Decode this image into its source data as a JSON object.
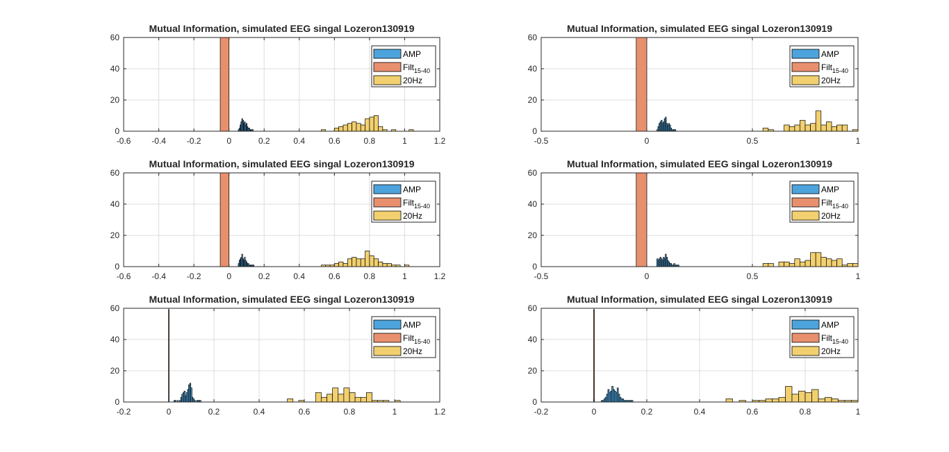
{
  "colors": {
    "amp": "#4DA3DC",
    "filt": "#E8906E",
    "hz20": "#F2D06F",
    "grid": "#dcdcdc",
    "axis": "#262626",
    "bar_edge": "#000000"
  },
  "chart_data": [
    {
      "type": "histogram",
      "title": "Mutual Information, simulated EEG singal Lozeron130919",
      "xlim": [
        -0.6,
        1.2
      ],
      "ylim": [
        0,
        60
      ],
      "xticks": [
        -0.6,
        -0.4,
        -0.2,
        0,
        0.2,
        0.4,
        0.6,
        0.8,
        1,
        1.2
      ],
      "xtick_labels": [
        "-0.6",
        "-0.4",
        "-0.2",
        "0",
        "0.2",
        "0.4",
        "0.6",
        "0.8",
        "1",
        "1.2"
      ],
      "yticks": [
        0,
        20,
        40,
        60
      ],
      "ytick_labels": [
        "0",
        "20",
        "40",
        "60"
      ],
      "grid": true,
      "legend": {
        "position": "top-right",
        "entries": [
          {
            "key": "amp",
            "label": "AMP"
          },
          {
            "key": "filt",
            "label": "Filt",
            "sub": "15-40"
          },
          {
            "key": "hz20",
            "label": "20Hz"
          }
        ]
      },
      "series": [
        {
          "key": "amp",
          "name": "AMP",
          "bin_width": 0.005,
          "x": [
            0.055,
            0.06,
            0.065,
            0.07,
            0.075,
            0.08,
            0.085,
            0.09,
            0.095,
            0.1,
            0.105,
            0.11,
            0.115,
            0.12,
            0.125,
            0.13,
            0.135
          ],
          "values": [
            1,
            2,
            4,
            6,
            8,
            7,
            5,
            6,
            4,
            5,
            3,
            2,
            2,
            1,
            1,
            1,
            1
          ]
        },
        {
          "key": "filt",
          "name": "Filt15-40",
          "bin_width": 0.05,
          "x": [
            -0.025
          ],
          "values": [
            60
          ]
        },
        {
          "key": "hz20",
          "name": "20Hz",
          "bin_width": 0.025,
          "x": [
            0.5375,
            0.6125,
            0.6375,
            0.6625,
            0.6875,
            0.7125,
            0.7375,
            0.7625,
            0.7875,
            0.8125,
            0.8375,
            0.8625,
            0.8875,
            0.9375,
            1.0375
          ],
          "values": [
            1,
            2,
            3,
            4,
            5,
            6,
            5,
            4,
            8,
            9,
            10,
            3,
            1,
            1,
            1
          ]
        }
      ]
    },
    {
      "type": "histogram",
      "title": "Mutual Information, simulated EEG singal Lozeron130919",
      "xlim": [
        -0.5,
        1
      ],
      "ylim": [
        0,
        60
      ],
      "xticks": [
        -0.5,
        0,
        0.5,
        1
      ],
      "xtick_labels": [
        "-0.5",
        "0",
        "0.5",
        "1"
      ],
      "yticks": [
        0,
        20,
        40,
        60
      ],
      "ytick_labels": [
        "0",
        "20",
        "40",
        "60"
      ],
      "grid": true,
      "legend": {
        "position": "top-right",
        "entries": [
          {
            "key": "amp",
            "label": "AMP"
          },
          {
            "key": "filt",
            "label": "Filt",
            "sub": "15-40"
          },
          {
            "key": "hz20",
            "label": "20Hz"
          }
        ]
      },
      "series": [
        {
          "key": "amp",
          "name": "AMP",
          "bin_width": 0.005,
          "x": [
            0.05,
            0.055,
            0.06,
            0.065,
            0.07,
            0.075,
            0.08,
            0.085,
            0.09,
            0.095,
            0.1,
            0.105,
            0.11,
            0.115,
            0.12,
            0.125,
            0.13,
            0.135
          ],
          "values": [
            1,
            3,
            5,
            6,
            7,
            5,
            6,
            8,
            9,
            5,
            4,
            5,
            4,
            2,
            1,
            1,
            1,
            1
          ]
        },
        {
          "key": "filt",
          "name": "Filt15-40",
          "bin_width": 0.05,
          "x": [
            -0.025
          ],
          "values": [
            60
          ]
        },
        {
          "key": "hz20",
          "name": "20Hz",
          "bin_width": 0.025,
          "x": [
            0.5625,
            0.5875,
            0.6625,
            0.6875,
            0.7125,
            0.7375,
            0.7625,
            0.7875,
            0.8125,
            0.8375,
            0.8625,
            0.8875,
            0.9125,
            0.9375,
            0.9875
          ],
          "values": [
            2,
            1,
            4,
            3,
            4,
            7,
            4,
            5,
            13,
            4,
            6,
            3,
            4,
            4,
            1
          ]
        }
      ]
    },
    {
      "type": "histogram",
      "title": "Mutual Information, simulated EEG singal Lozeron130919",
      "xlim": [
        -0.6,
        1.2
      ],
      "ylim": [
        0,
        60
      ],
      "xticks": [
        -0.6,
        -0.4,
        -0.2,
        0,
        0.2,
        0.4,
        0.6,
        0.8,
        1,
        1.2
      ],
      "xtick_labels": [
        "-0.6",
        "-0.4",
        "-0.2",
        "0",
        "0.2",
        "0.4",
        "0.6",
        "0.8",
        "1",
        "1.2"
      ],
      "yticks": [
        0,
        20,
        40,
        60
      ],
      "ytick_labels": [
        "0",
        "20",
        "40",
        "60"
      ],
      "grid": true,
      "legend": {
        "position": "top-right",
        "entries": [
          {
            "key": "amp",
            "label": "AMP"
          },
          {
            "key": "filt",
            "label": "Filt",
            "sub": "15-40"
          },
          {
            "key": "hz20",
            "label": "20Hz"
          }
        ]
      },
      "series": [
        {
          "key": "amp",
          "name": "AMP",
          "bin_width": 0.005,
          "x": [
            0.055,
            0.06,
            0.065,
            0.07,
            0.075,
            0.08,
            0.085,
            0.09,
            0.095,
            0.1,
            0.105,
            0.11,
            0.115,
            0.12,
            0.125,
            0.13,
            0.135,
            0.14
          ],
          "values": [
            2,
            4,
            5,
            6,
            8,
            5,
            4,
            6,
            4,
            3,
            2,
            2,
            1,
            1,
            1,
            1,
            1,
            1
          ]
        },
        {
          "key": "filt",
          "name": "Filt15-40",
          "bin_width": 0.05,
          "x": [
            -0.025
          ],
          "values": [
            60
          ]
        },
        {
          "key": "hz20",
          "name": "20Hz",
          "bin_width": 0.025,
          "x": [
            0.5375,
            0.5625,
            0.5875,
            0.6125,
            0.6375,
            0.6625,
            0.6875,
            0.7125,
            0.7375,
            0.7625,
            0.7875,
            0.8125,
            0.8375,
            0.8625,
            0.8875,
            0.9125,
            0.9375,
            0.9625,
            1.0125
          ],
          "values": [
            1,
            1,
            1,
            2,
            3,
            2,
            5,
            6,
            5,
            5,
            10,
            7,
            5,
            3,
            2,
            2,
            1,
            1,
            1
          ]
        }
      ]
    },
    {
      "type": "histogram",
      "title": "Mutual Information, simulated EEG singal Lozeron130919",
      "xlim": [
        -0.5,
        1
      ],
      "ylim": [
        0,
        60
      ],
      "xticks": [
        -0.5,
        0,
        0.5,
        1
      ],
      "xtick_labels": [
        "-0.5",
        "0",
        "0.5",
        "1"
      ],
      "yticks": [
        0,
        20,
        40,
        60
      ],
      "ytick_labels": [
        "0",
        "20",
        "40",
        "60"
      ],
      "grid": true,
      "legend": {
        "position": "top-right",
        "entries": [
          {
            "key": "amp",
            "label": "AMP"
          },
          {
            "key": "filt",
            "label": "Filt",
            "sub": "15-40"
          },
          {
            "key": "hz20",
            "label": "20Hz"
          }
        ]
      },
      "series": [
        {
          "key": "amp",
          "name": "AMP",
          "bin_width": 0.005,
          "x": [
            0.05,
            0.055,
            0.06,
            0.065,
            0.07,
            0.075,
            0.08,
            0.085,
            0.09,
            0.095,
            0.1,
            0.105,
            0.11,
            0.115,
            0.12,
            0.125,
            0.13,
            0.135,
            0.14,
            0.145,
            0.15
          ],
          "values": [
            5,
            4,
            5,
            6,
            5,
            4,
            6,
            5,
            8,
            6,
            4,
            3,
            2,
            2,
            1,
            1,
            2,
            1,
            1,
            1,
            1
          ]
        },
        {
          "key": "filt",
          "name": "Filt15-40",
          "bin_width": 0.05,
          "x": [
            -0.025
          ],
          "values": [
            60
          ]
        },
        {
          "key": "hz20",
          "name": "20Hz",
          "bin_width": 0.025,
          "x": [
            0.5625,
            0.5875,
            0.6375,
            0.6625,
            0.6875,
            0.7125,
            0.7375,
            0.7625,
            0.7875,
            0.8125,
            0.8375,
            0.8625,
            0.8875,
            0.9125,
            0.9375,
            0.9625,
            0.9875
          ],
          "values": [
            2,
            2,
            3,
            3,
            2,
            5,
            3,
            4,
            9,
            9,
            6,
            5,
            4,
            5,
            1,
            2,
            2
          ]
        }
      ]
    },
    {
      "type": "histogram",
      "title": "Mutual Information, simulated EEG singal Lozeron130919",
      "xlim": [
        -0.2,
        1.2
      ],
      "ylim": [
        0,
        60
      ],
      "xticks": [
        -0.2,
        0,
        0.2,
        0.4,
        0.6,
        0.8,
        1,
        1.2
      ],
      "xtick_labels": [
        "-0.2",
        "0",
        "0.2",
        "0.4",
        "0.6",
        "0.8",
        "1",
        "1.2"
      ],
      "yticks": [
        0,
        20,
        40,
        60
      ],
      "ytick_labels": [
        "0",
        "20",
        "40",
        "60"
      ],
      "grid": true,
      "legend": {
        "position": "top-right",
        "entries": [
          {
            "key": "amp",
            "label": "AMP"
          },
          {
            "key": "filt",
            "label": "Filt",
            "sub": "15-40"
          },
          {
            "key": "hz20",
            "label": "20Hz"
          }
        ]
      },
      "series": [
        {
          "key": "amp",
          "name": "AMP",
          "bin_width": 0.005,
          "x": [
            0.025,
            0.03,
            0.04,
            0.05,
            0.055,
            0.06,
            0.065,
            0.07,
            0.075,
            0.08,
            0.085,
            0.09,
            0.095,
            0.1,
            0.105,
            0.11,
            0.115,
            0.125,
            0.13,
            0.135,
            0.14
          ],
          "values": [
            1,
            1,
            1,
            1,
            3,
            5,
            6,
            7,
            4,
            6,
            8,
            11,
            12,
            9,
            3,
            2,
            1,
            1,
            1,
            1,
            1
          ]
        },
        {
          "key": "filt",
          "name": "Filt15-40",
          "bin_width": 0.003,
          "x": [
            0.0
          ],
          "values": [
            59
          ]
        },
        {
          "key": "hz20",
          "name": "20Hz",
          "bin_width": 0.025,
          "x": [
            0.5375,
            0.5875,
            0.6625,
            0.6875,
            0.7125,
            0.7375,
            0.7625,
            0.7875,
            0.8125,
            0.8375,
            0.8625,
            0.8875,
            0.9125,
            0.9375,
            0.9625,
            1.0125
          ],
          "values": [
            2,
            1,
            6,
            3,
            5,
            9,
            5,
            9,
            6,
            3,
            3,
            6,
            1,
            1,
            1,
            1
          ]
        }
      ]
    },
    {
      "type": "histogram",
      "title": "Mutual Information, simulated EEG singal Lozeron130919",
      "xlim": [
        -0.2,
        1
      ],
      "ylim": [
        0,
        60
      ],
      "xticks": [
        -0.2,
        0,
        0.2,
        0.4,
        0.6,
        0.8,
        1
      ],
      "xtick_labels": [
        "-0.2",
        "0",
        "0.2",
        "0.4",
        "0.6",
        "0.8",
        "1"
      ],
      "yticks": [
        0,
        20,
        40,
        60
      ],
      "ytick_labels": [
        "0",
        "20",
        "40",
        "60"
      ],
      "grid": true,
      "legend": {
        "position": "top-right",
        "entries": [
          {
            "key": "amp",
            "label": "AMP"
          },
          {
            "key": "filt",
            "label": "Filt",
            "sub": "15-40"
          },
          {
            "key": "hz20",
            "label": "20Hz"
          }
        ]
      },
      "series": [
        {
          "key": "amp",
          "name": "AMP",
          "bin_width": 0.005,
          "x": [
            0.03,
            0.035,
            0.04,
            0.045,
            0.05,
            0.055,
            0.06,
            0.065,
            0.07,
            0.075,
            0.08,
            0.085,
            0.09,
            0.095,
            0.1,
            0.105,
            0.11,
            0.115,
            0.12,
            0.125,
            0.13,
            0.135,
            0.14,
            0.145
          ],
          "values": [
            1,
            1,
            2,
            3,
            5,
            8,
            6,
            7,
            10,
            8,
            7,
            6,
            9,
            5,
            3,
            2,
            2,
            1,
            1,
            1,
            1,
            1,
            1,
            1
          ]
        },
        {
          "key": "filt",
          "name": "Filt15-40",
          "bin_width": 0.003,
          "x": [
            0.0
          ],
          "values": [
            59
          ]
        },
        {
          "key": "hz20",
          "name": "20Hz",
          "bin_width": 0.025,
          "x": [
            0.5125,
            0.5625,
            0.6125,
            0.6375,
            0.6625,
            0.6875,
            0.7125,
            0.7375,
            0.7625,
            0.7875,
            0.8125,
            0.8375,
            0.8625,
            0.8875,
            0.9125,
            0.9375,
            0.9625,
            0.9875
          ],
          "values": [
            2,
            1,
            1,
            1,
            2,
            2,
            3,
            10,
            5,
            7,
            6,
            8,
            2,
            3,
            2,
            1,
            1,
            1
          ]
        }
      ]
    }
  ]
}
